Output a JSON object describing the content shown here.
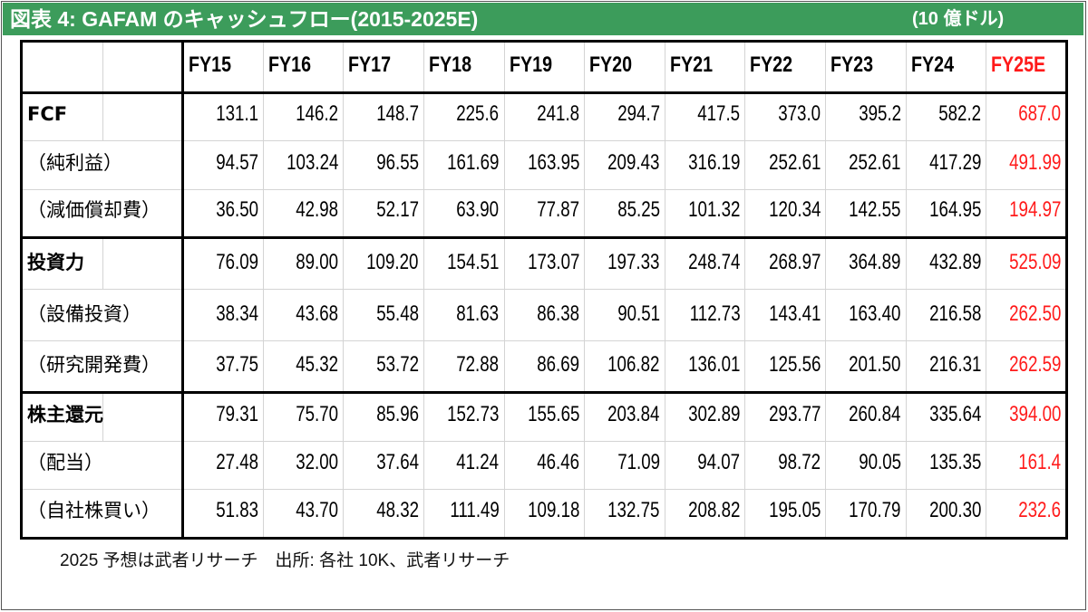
{
  "chart_data": {
    "type": "table",
    "title": "図表 4: GAFAM のキャッシュフロー(2015-2025E)",
    "unit": "(10 億ドル)",
    "columns": [
      "FY15",
      "FY16",
      "FY17",
      "FY18",
      "FY19",
      "FY20",
      "FY21",
      "FY22",
      "FY23",
      "FY24",
      "FY25E"
    ],
    "column_colors": [
      "#000000",
      "#000000",
      "#000000",
      "#000000",
      "#000000",
      "#000000",
      "#000000",
      "#000000",
      "#000000",
      "#000000",
      "#ff1a1a"
    ],
    "rows": [
      {
        "label": "FCF",
        "values": [
          "131.1",
          "146.2",
          "148.7",
          "225.6",
          "241.8",
          "294.7",
          "417.5",
          "373.0",
          "395.2",
          "582.2",
          "687.0"
        ],
        "components": [
          {
            "label": "（純利益）",
            "values": [
              "94.57",
              "103.24",
              "96.55",
              "161.69",
              "163.95",
              "209.43",
              "316.19",
              "252.61",
              "252.61",
              "417.29",
              "491.99"
            ]
          },
          {
            "label": "（減価償却費）",
            "values": [
              "36.50",
              "42.98",
              "52.17",
              "63.90",
              "77.87",
              "85.25",
              "101.32",
              "120.34",
              "142.55",
              "164.95",
              "194.97"
            ]
          }
        ]
      },
      {
        "label": "投資力",
        "values": [
          "76.09",
          "89.00",
          "109.20",
          "154.51",
          "173.07",
          "197.33",
          "248.74",
          "268.97",
          "364.89",
          "432.89",
          "525.09"
        ],
        "components": [
          {
            "label": "（設備投資）",
            "values": [
              "38.34",
              "43.68",
              "55.48",
              "81.63",
              "86.38",
              "90.51",
              "112.73",
              "143.41",
              "163.40",
              "216.58",
              "262.50"
            ]
          },
          {
            "label": "（研究開発費）",
            "values": [
              "37.75",
              "45.32",
              "53.72",
              "72.88",
              "86.69",
              "106.82",
              "136.01",
              "125.56",
              "201.50",
              "216.31",
              "262.59"
            ]
          }
        ]
      },
      {
        "label": "株主還元",
        "values": [
          "79.31",
          "75.70",
          "85.96",
          "152.73",
          "155.65",
          "203.84",
          "302.89",
          "293.77",
          "260.84",
          "335.64",
          "394.00"
        ],
        "components": [
          {
            "label": "（配当）",
            "values": [
              "27.48",
              "32.00",
              "37.64",
              "41.24",
              "46.46",
              "71.09",
              "94.07",
              "98.72",
              "90.05",
              "135.35",
              "161.4"
            ]
          },
          {
            "label": "（自社株買い）",
            "values": [
              "51.83",
              "43.70",
              "48.32",
              "111.49",
              "109.18",
              "132.75",
              "208.82",
              "195.05",
              "170.79",
              "200.30",
              "232.6"
            ]
          }
        ]
      }
    ]
  },
  "footnote": "2025 予想は武者リサーチ　出所: 各社 10K、武者リサーチ",
  "colors": {
    "title_bar": "#3c9c5b",
    "title_text": "#ffffff",
    "grid": "#d4d4d4",
    "rule": "#000000"
  }
}
